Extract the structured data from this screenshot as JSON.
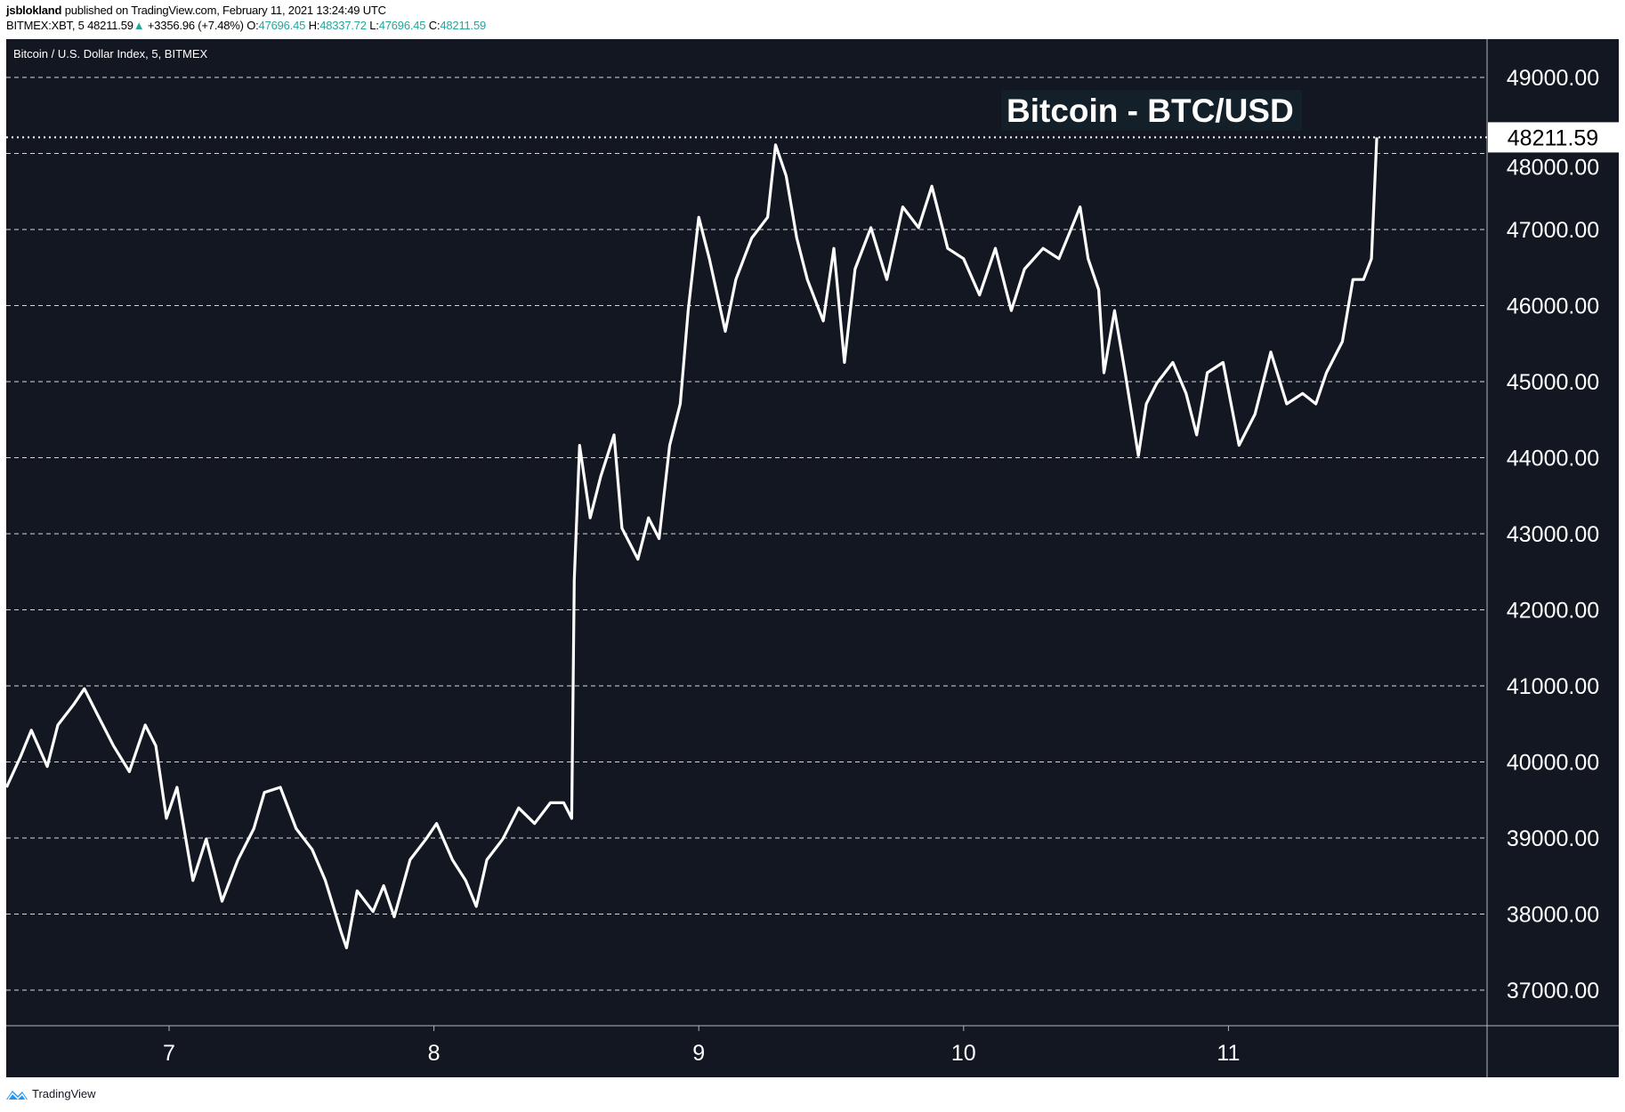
{
  "header": {
    "author": "jsblokland",
    "published": "published on TradingView.com, February 11, 2021 13:24:49 UTC",
    "symbol": "BITMEX:XBT, 5",
    "last": "48211.59",
    "change": "+3356.96 (+7.48%)",
    "o_label": "O:",
    "o": "47696.45",
    "h_label": "H:",
    "h": "48337.72",
    "l_label": "L:",
    "l": "47696.45",
    "c_label": "C:",
    "c": "48211.59",
    "up_icon": "triangle-up-icon"
  },
  "brand": {
    "name": "TradingView",
    "icon": "tradingview-logo-icon"
  },
  "colors": {
    "background": "#131722",
    "line": "#ffffff",
    "up": "#26a69a",
    "grid": "#ffffff",
    "label_bg": "#13202a"
  },
  "chart_data": {
    "type": "line",
    "title": "Bitcoin / U.S. Dollar Index, 5, BITMEX",
    "annotation": "Bitcoin - BTC/USD",
    "last_price_label": "48211.59",
    "last_price": 48211.59,
    "xlabel": "",
    "ylabel": "",
    "xlim": [
      6.386,
      12.0
    ],
    "ylim": [
      36540,
      49500
    ],
    "x_ticks": [
      7,
      8,
      9,
      10,
      11
    ],
    "x_tick_labels": [
      "7",
      "8",
      "9",
      "10",
      "11"
    ],
    "y_ticks": [
      37000,
      38000,
      39000,
      40000,
      41000,
      42000,
      43000,
      44000,
      45000,
      46000,
      47000,
      48000,
      49000
    ],
    "y_tick_labels": [
      "37000.00",
      "38000.00",
      "39000.00",
      "40000.00",
      "41000.00",
      "42000.00",
      "43000.00",
      "44000.00",
      "45000.00",
      "46000.00",
      "47000.00",
      "48000.00",
      "49000.00"
    ],
    "grid": "horizontal dashed",
    "series": [
      {
        "x": [
          6.386,
          6.44,
          6.48,
          6.54,
          6.58,
          6.64,
          6.68,
          6.73,
          6.79,
          6.85,
          6.91,
          6.95,
          6.99,
          7.03,
          7.09,
          7.14,
          7.2,
          7.26,
          7.32,
          7.36,
          7.42,
          7.48,
          7.54,
          7.59,
          7.65,
          7.67,
          7.71,
          7.77,
          7.81,
          7.85,
          7.91,
          7.97,
          8.01,
          8.07,
          8.12,
          8.16,
          8.2,
          8.26,
          8.32,
          8.38,
          8.44,
          8.49,
          8.52,
          8.53,
          8.55,
          8.59,
          8.63,
          8.68,
          8.71,
          8.77,
          8.81,
          8.85,
          8.89,
          8.93,
          8.96,
          9.0,
          9.04,
          9.1,
          9.14,
          9.2,
          9.26,
          9.29,
          9.33,
          9.37,
          9.41,
          9.47,
          9.51,
          9.55,
          9.59,
          9.65,
          9.71,
          9.77,
          9.83,
          9.88,
          9.94,
          10.0,
          10.06,
          10.12,
          10.18,
          10.23,
          10.3,
          10.36,
          10.4,
          10.44,
          10.47,
          10.51,
          10.53,
          10.57,
          10.61,
          10.66,
          10.69,
          10.73,
          10.79,
          10.84,
          10.88,
          10.92,
          10.98,
          11.04,
          11.1,
          11.16,
          11.22,
          11.28,
          11.33,
          11.37,
          11.43,
          11.47,
          11.51,
          11.54,
          11.56
        ],
        "y": [
          39667,
          40076,
          40417,
          39940,
          40485,
          40757,
          40962,
          40621,
          40213,
          39872,
          40485,
          40213,
          39259,
          39667,
          38441,
          38986,
          38169,
          38714,
          39123,
          39599,
          39667,
          39123,
          38850,
          38441,
          37760,
          37556,
          38305,
          38033,
          38373,
          37964,
          38714,
          38986,
          39191,
          38714,
          38441,
          38101,
          38714,
          38986,
          39395,
          39191,
          39463,
          39463,
          39259,
          42392,
          44163,
          43209,
          43755,
          44300,
          43074,
          42665,
          43209,
          42937,
          44163,
          44708,
          45935,
          47161,
          46616,
          45662,
          46343,
          46888,
          47161,
          48114,
          47706,
          46888,
          46343,
          45798,
          46752,
          45253,
          46480,
          47025,
          46343,
          47297,
          47025,
          47570,
          46752,
          46616,
          46139,
          46752,
          45935,
          46480,
          46752,
          46616,
          46956,
          47297,
          46616,
          46207,
          45117,
          45935,
          45117,
          44027,
          44708,
          44981,
          45253,
          44844,
          44300,
          45117,
          45253,
          44163,
          44572,
          45390,
          44708,
          44844,
          44708,
          45117,
          45526,
          46343,
          46343,
          46616,
          48211.59
        ]
      }
    ]
  }
}
